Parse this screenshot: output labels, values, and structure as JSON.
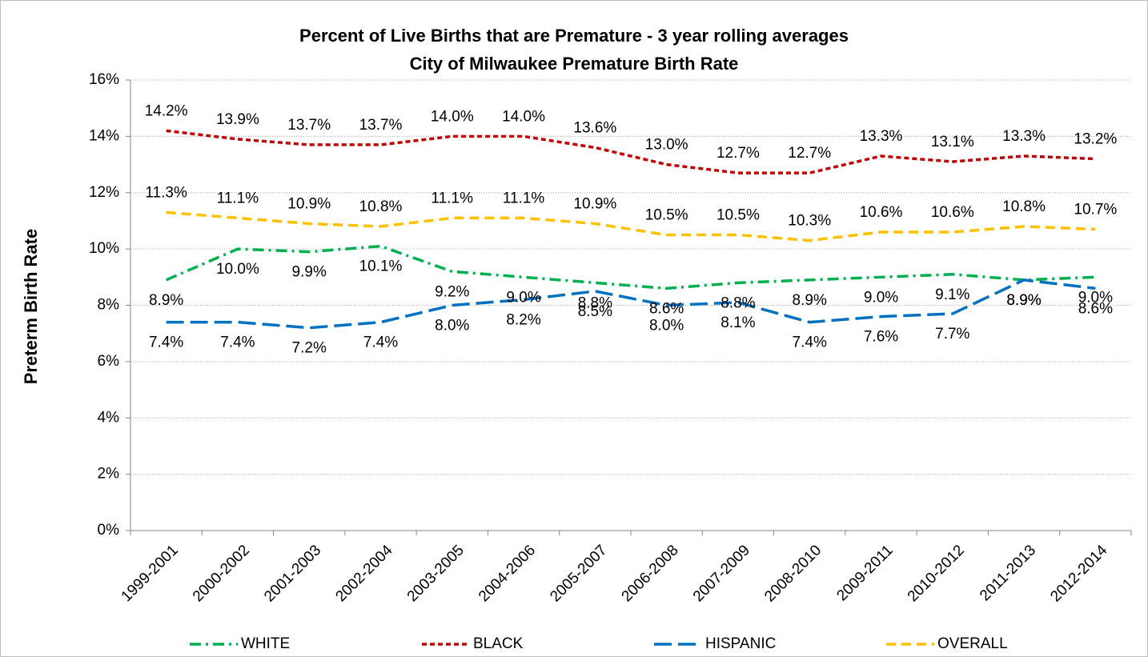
{
  "chart_data": {
    "type": "line",
    "title": "Percent of Live Births that are Premature - 3 year rolling averages",
    "subtitle": "City of Milwaukee Premature Birth Rate",
    "y_label": "Preterm Birth Rate",
    "categories": [
      "1999-2001",
      "2000-2002",
      "2001-2003",
      "2002-2004",
      "2003-2005",
      "2004-2006",
      "2005-2007",
      "2006-2008",
      "2007-2009",
      "2008-2010",
      "2009-2011",
      "2010-2012",
      "2011-2013",
      "2012-2014"
    ],
    "series": [
      {
        "name": "WHITE",
        "color": "#00b050",
        "dash": "dashdot",
        "label_side": "below",
        "values": [
          8.9,
          10.0,
          9.9,
          10.1,
          9.2,
          9.0,
          8.8,
          8.6,
          8.8,
          8.9,
          9.0,
          9.1,
          8.9,
          9.0
        ],
        "value_labels": [
          "8.9%",
          "10.0%",
          "9.9%",
          "10.1%",
          "9.2%",
          "9.0%",
          "8.8%",
          "8.6%",
          "8.8%",
          "8.9%",
          "9.0%",
          "9.1%",
          "8.9%",
          "9.0%"
        ]
      },
      {
        "name": "BLACK",
        "color": "#c00000",
        "dash": "dot",
        "label_side": "above",
        "values": [
          14.2,
          13.9,
          13.7,
          13.7,
          14.0,
          14.0,
          13.6,
          13.0,
          12.7,
          12.7,
          13.3,
          13.1,
          13.3,
          13.2
        ],
        "value_labels": [
          "14.2%",
          "13.9%",
          "13.7%",
          "13.7%",
          "14.0%",
          "14.0%",
          "13.6%",
          "13.0%",
          "12.7%",
          "12.7%",
          "13.3%",
          "13.1%",
          "13.3%",
          "13.2%"
        ]
      },
      {
        "name": "HISPANIC",
        "color": "#0070c0",
        "dash": "longdash",
        "label_side": "below",
        "values": [
          7.4,
          7.4,
          7.2,
          7.4,
          8.0,
          8.2,
          8.5,
          8.0,
          8.1,
          7.4,
          7.6,
          7.7,
          8.9,
          8.6
        ],
        "value_labels": [
          "7.4%",
          "7.4%",
          "7.2%",
          "7.4%",
          "8.0%",
          "8.2%",
          "8.5%",
          "8.0%",
          "8.1%",
          "7.4%",
          "7.6%",
          "7.7%",
          "8.9%",
          "8.6%"
        ]
      },
      {
        "name": "OVERALL",
        "color": "#ffc000",
        "dash": "dash",
        "label_side": "above",
        "values": [
          11.3,
          11.1,
          10.9,
          10.8,
          11.1,
          11.1,
          10.9,
          10.5,
          10.5,
          10.3,
          10.6,
          10.6,
          10.8,
          10.7
        ],
        "value_labels": [
          "11.3%",
          "11.1%",
          "10.9%",
          "10.8%",
          "11.1%",
          "11.1%",
          "10.9%",
          "10.5%",
          "10.5%",
          "10.3%",
          "10.6%",
          "10.6%",
          "10.8%",
          "10.7%"
        ]
      }
    ],
    "ylim": [
      0,
      16
    ],
    "yticks": [
      {
        "value": 0,
        "label": "0%"
      },
      {
        "value": 2,
        "label": "2%"
      },
      {
        "value": 4,
        "label": "4%"
      },
      {
        "value": 6,
        "label": "6%"
      },
      {
        "value": 8,
        "label": "8%"
      },
      {
        "value": 10,
        "label": "10%"
      },
      {
        "value": 12,
        "label": "12%"
      },
      {
        "value": 14,
        "label": "14%"
      },
      {
        "value": 16,
        "label": "16%"
      }
    ],
    "grid": true,
    "legend": "bottom"
  }
}
